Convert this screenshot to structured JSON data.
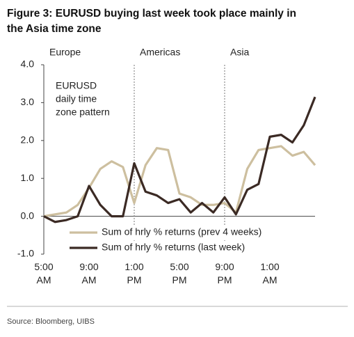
{
  "title": [
    "Figure 3: EURUSD buying last week took place mainly in",
    "the Asia time zone"
  ],
  "source": "Source: Bloomberg, UIBS",
  "chart_data": {
    "type": "line",
    "regions": [
      {
        "label": "Europe"
      },
      {
        "label": "Americas"
      },
      {
        "label": "Asia"
      }
    ],
    "annotation": [
      "EURUSD",
      "daily time",
      "zone pattern"
    ],
    "categories": [
      "5:00 AM",
      null,
      null,
      null,
      "9:00 AM",
      null,
      null,
      null,
      "1:00 PM",
      null,
      null,
      null,
      "5:00 PM",
      null,
      null,
      null,
      "9:00 PM",
      null,
      null,
      null,
      "1:00 AM",
      null,
      null,
      null,
      null
    ],
    "series": [
      {
        "name": "Sum of hrly % returns (prev 4 weeks)",
        "color": "#cdbf9f",
        "values": [
          0.0,
          0.05,
          0.1,
          0.3,
          0.75,
          1.25,
          1.45,
          1.3,
          0.35,
          1.35,
          1.8,
          1.75,
          0.6,
          0.5,
          0.3,
          0.3,
          0.35,
          0.1,
          1.25,
          1.75,
          1.8,
          1.85,
          1.6,
          1.7,
          1.35
        ]
      },
      {
        "name": "Sum of hrly % returns (last week)",
        "color": "#3b2a24",
        "values": [
          0.0,
          -0.15,
          -0.1,
          0.0,
          0.8,
          0.3,
          0.0,
          0.0,
          1.4,
          0.65,
          0.55,
          0.35,
          0.45,
          0.1,
          0.35,
          0.1,
          0.5,
          0.05,
          0.7,
          0.85,
          2.1,
          2.15,
          1.95,
          2.4,
          3.15
        ]
      }
    ],
    "ylim": [
      -1.0,
      4.0
    ],
    "yticks": [
      {
        "value": -1.0,
        "label": "-1.0"
      },
      {
        "value": 0.0,
        "label": "0.0"
      },
      {
        "value": 1.0,
        "label": "1.0"
      },
      {
        "value": 2.0,
        "label": "2.0"
      },
      {
        "value": 3.0,
        "label": "3.0"
      },
      {
        "value": 4.0,
        "label": "4.0"
      }
    ],
    "dividers": [
      8,
      16
    ]
  }
}
